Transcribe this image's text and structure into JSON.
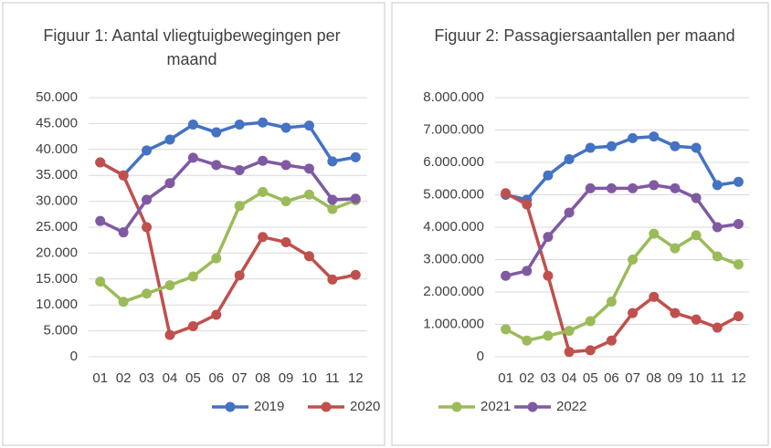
{
  "chart_data": [
    {
      "type": "line",
      "title": "Figuur 1: Aantal vliegtuigbewegingen per maand",
      "categories": [
        "01",
        "02",
        "03",
        "04",
        "05",
        "06",
        "07",
        "08",
        "09",
        "10",
        "11",
        "12"
      ],
      "ylim": [
        0,
        50000
      ],
      "yticks": [
        0,
        {
          "value": 5000,
          "label": "5.000"
        },
        {
          "value": 10000,
          "label": "10.000"
        },
        {
          "value": 15000,
          "label": "15.000"
        },
        {
          "value": 20000,
          "label": "20.000"
        },
        {
          "value": 25000,
          "label": "25.000"
        },
        {
          "value": 30000,
          "label": "30.000"
        },
        {
          "value": 35000,
          "label": "35.000"
        },
        {
          "value": 40000,
          "label": "40.000"
        },
        {
          "value": 45000,
          "label": "45.000"
        },
        {
          "value": 50000,
          "label": "50.000"
        }
      ],
      "grid": true,
      "series": [
        {
          "name": "2019",
          "color": "#4472c4",
          "values": [
            37500,
            35000,
            39800,
            41900,
            44800,
            43300,
            44800,
            45200,
            44200,
            44600,
            37700,
            38500
          ]
        },
        {
          "name": "2020",
          "color": "#c0504d",
          "values": [
            37500,
            35000,
            25000,
            4200,
            5900,
            8100,
            15700,
            23100,
            22100,
            19400,
            14900,
            15800
          ]
        },
        {
          "name": "2021",
          "color": "#9bbb59",
          "values": [
            14500,
            10600,
            12200,
            13800,
            15500,
            19000,
            29100,
            31800,
            30000,
            31300,
            28500,
            30200
          ]
        },
        {
          "name": "2022",
          "color": "#7f5aa2",
          "values": [
            26200,
            24000,
            30300,
            33500,
            38400,
            37000,
            36000,
            37800,
            37000,
            36300,
            30300,
            30500
          ]
        }
      ]
    },
    {
      "type": "line",
      "title": "Figuur 2: Passagiersaantallen per maand",
      "categories": [
        "01",
        "02",
        "03",
        "04",
        "05",
        "06",
        "07",
        "08",
        "09",
        "10",
        "11",
        "12"
      ],
      "ylim": [
        0,
        8000000
      ],
      "yticks": [
        0,
        {
          "value": 1000000,
          "label": "1.000.000"
        },
        {
          "value": 2000000,
          "label": "2.000.000"
        },
        {
          "value": 3000000,
          "label": "3.000.000"
        },
        {
          "value": 4000000,
          "label": "4.000.000"
        },
        {
          "value": 5000000,
          "label": "5.000.000"
        },
        {
          "value": 6000000,
          "label": "6.000.000"
        },
        {
          "value": 7000000,
          "label": "7.000.000"
        },
        {
          "value": 8000000,
          "label": "8.000.000"
        }
      ],
      "grid": true,
      "series": [
        {
          "name": "2019",
          "color": "#4472c4",
          "values": [
            5000000,
            4850000,
            5600000,
            6100000,
            6450000,
            6500000,
            6750000,
            6800000,
            6500000,
            6450000,
            5300000,
            5400000
          ]
        },
        {
          "name": "2020",
          "color": "#c0504d",
          "values": [
            5050000,
            4700000,
            2500000,
            150000,
            200000,
            500000,
            1350000,
            1850000,
            1350000,
            1150000,
            900000,
            1250000
          ]
        },
        {
          "name": "2021",
          "color": "#9bbb59",
          "values": [
            850000,
            500000,
            650000,
            800000,
            1100000,
            1700000,
            3000000,
            3800000,
            3350000,
            3750000,
            3100000,
            2850000
          ]
        },
        {
          "name": "2022",
          "color": "#7f5aa2",
          "values": [
            2500000,
            2650000,
            3700000,
            4450000,
            5200000,
            5200000,
            5200000,
            5300000,
            5200000,
            4900000,
            4000000,
            4100000
          ]
        }
      ]
    }
  ]
}
